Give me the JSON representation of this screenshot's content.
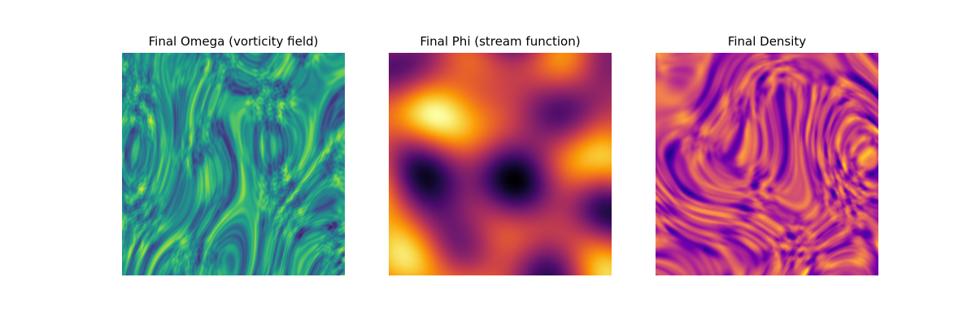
{
  "chart_data": [
    {
      "type": "heatmap",
      "title": "Final Omega (vorticity field)",
      "colormap": "viridis",
      "axes_visible": false,
      "grid": false,
      "pattern": "fine filamentary turbulent vortex structures"
    },
    {
      "type": "heatmap",
      "title": "Final Phi (stream function)",
      "colormap": "inferno",
      "axes_visible": false,
      "grid": false,
      "pattern": "smooth large-scale blobs"
    },
    {
      "type": "heatmap",
      "title": "Final Density",
      "colormap": "plasma",
      "axes_visible": false,
      "grid": false,
      "pattern": "turbulent blobs with filaments"
    }
  ]
}
